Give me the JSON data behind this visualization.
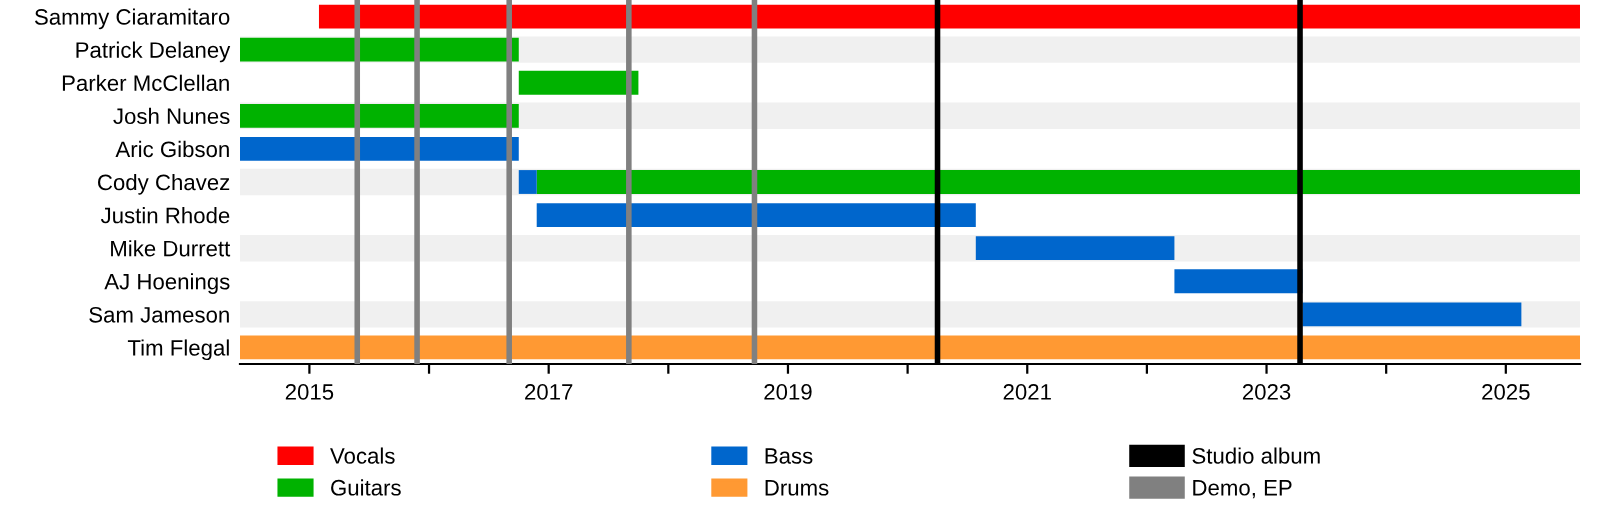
{
  "chart_data": {
    "type": "bar",
    "orientation": "horizontal",
    "categories": [
      "Sammy Ciaramitaro",
      "Patrick Delaney",
      "Parker McClellan",
      "Josh Nunes",
      "Aric Gibson",
      "Cody Chavez",
      "Justin Rhode",
      "Mike Durrett",
      "AJ Hoenings",
      "Sam Jameson",
      "Tim Flegal"
    ],
    "series": [
      {
        "name": "Vocals",
        "color": "#ff0000",
        "base": [
          2015.08,
          null,
          null,
          null,
          null,
          null,
          null,
          null,
          null,
          null,
          null
        ],
        "values": [
          10.54,
          null,
          null,
          null,
          null,
          null,
          null,
          null,
          null,
          null,
          null
        ]
      },
      {
        "name": "Guitars",
        "color": "#00b200",
        "base": [
          null,
          2014.42,
          2016.75,
          2014.42,
          null,
          2016.9,
          null,
          null,
          null,
          null,
          null
        ],
        "values": [
          null,
          2.33,
          1.0,
          2.33,
          null,
          8.72,
          null,
          null,
          null,
          null,
          null
        ]
      },
      {
        "name": "Bass",
        "color": "#0066cc",
        "base": [
          null,
          null,
          null,
          null,
          2014.42,
          2016.75,
          2016.9,
          2020.57,
          2022.23,
          2023.3,
          null
        ],
        "values": [
          null,
          null,
          null,
          null,
          2.33,
          0.15,
          3.67,
          1.66,
          1.07,
          1.83,
          null
        ]
      },
      {
        "name": "Drums",
        "color": "#ff9933",
        "base": [
          null,
          null,
          null,
          null,
          null,
          null,
          null,
          null,
          null,
          null,
          2014.42
        ],
        "values": [
          null,
          null,
          null,
          null,
          null,
          null,
          null,
          null,
          null,
          null,
          11.2
        ]
      }
    ],
    "ref_lines": [
      {
        "axis": "x",
        "value": 2020.25,
        "label": "Studio album",
        "color": "#000000"
      },
      {
        "axis": "x",
        "value": 2023.28,
        "color": "#000000"
      },
      {
        "axis": "x",
        "value": 2015.4,
        "label": "Demo, EP",
        "color": "#808080"
      },
      {
        "axis": "x",
        "value": 2015.9,
        "color": "#808080"
      },
      {
        "axis": "x",
        "value": 2016.67,
        "color": "#808080"
      },
      {
        "axis": "x",
        "value": 2017.67,
        "color": "#808080"
      },
      {
        "axis": "x",
        "value": 2018.72,
        "color": "#808080"
      }
    ],
    "xlim": [
      2014.42,
      2025.62
    ],
    "xticks": [
      2015,
      {
        "value": 2016,
        "label": null
      },
      2017,
      {
        "value": 2018,
        "label": null
      },
      2019,
      {
        "value": 2020,
        "label": null
      },
      2021,
      {
        "value": 2022,
        "label": null
      },
      2023,
      {
        "value": 2024,
        "label": null
      },
      2025
    ],
    "grid": false,
    "legend": "bottom"
  }
}
